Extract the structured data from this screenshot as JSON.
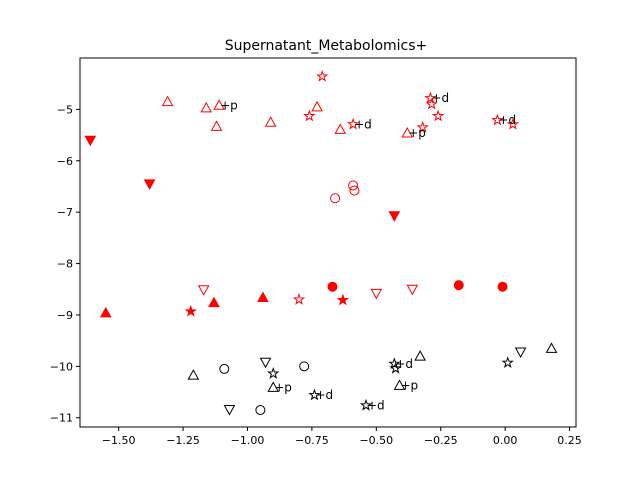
{
  "chart_data": {
    "type": "scatter",
    "title": "Supernatant_Metabolomics+",
    "xlabel": "",
    "ylabel": "",
    "xlim": [
      -1.65,
      0.275
    ],
    "ylim": [
      -11.18,
      -4.0
    ],
    "xticks": [
      -1.5,
      -1.25,
      -1.0,
      -0.75,
      -0.5,
      -0.25,
      0.0,
      0.25
    ],
    "xtick_labels": [
      "−1.50",
      "−1.25",
      "−1.00",
      "−0.75",
      "−0.50",
      "−0.25",
      "0.00",
      "0.25"
    ],
    "yticks": [
      -11,
      -10,
      -9,
      -8,
      -7,
      -6,
      -5
    ],
    "ytick_labels": [
      "−11",
      "−10",
      "−9",
      "−8",
      "−7",
      "−6",
      "−5"
    ],
    "grid": false,
    "colors": {
      "red": "#ff0000",
      "black": "#000000"
    },
    "points": [
      {
        "x": -1.31,
        "y": -4.85,
        "marker": "triangle-up",
        "filled": false,
        "color": "red"
      },
      {
        "x": -1.16,
        "y": -4.97,
        "marker": "triangle-up",
        "filled": false,
        "color": "red"
      },
      {
        "x": -1.11,
        "y": -4.92,
        "marker": "triangle-up",
        "filled": false,
        "color": "red",
        "label": "+p"
      },
      {
        "x": -1.12,
        "y": -5.33,
        "marker": "triangle-up",
        "filled": false,
        "color": "red"
      },
      {
        "x": -0.91,
        "y": -5.25,
        "marker": "triangle-up",
        "filled": false,
        "color": "red"
      },
      {
        "x": -0.73,
        "y": -4.95,
        "marker": "triangle-up",
        "filled": false,
        "color": "red"
      },
      {
        "x": -0.64,
        "y": -5.39,
        "marker": "triangle-up",
        "filled": false,
        "color": "red"
      },
      {
        "x": -0.38,
        "y": -5.46,
        "marker": "triangle-up",
        "filled": false,
        "color": "red",
        "label": "+p"
      },
      {
        "x": -0.71,
        "y": -4.36,
        "marker": "star",
        "filled": false,
        "color": "red"
      },
      {
        "x": -0.76,
        "y": -5.13,
        "marker": "star",
        "filled": false,
        "color": "red"
      },
      {
        "x": -0.59,
        "y": -5.29,
        "marker": "star",
        "filled": false,
        "color": "red",
        "label": "+d"
      },
      {
        "x": -0.29,
        "y": -4.78,
        "marker": "star",
        "filled": false,
        "color": "red",
        "label": "+d"
      },
      {
        "x": -0.285,
        "y": -4.9,
        "marker": "star",
        "filled": false,
        "color": "red"
      },
      {
        "x": -0.26,
        "y": -5.13,
        "marker": "star",
        "filled": false,
        "color": "red"
      },
      {
        "x": -0.32,
        "y": -5.35,
        "marker": "star",
        "filled": false,
        "color": "red"
      },
      {
        "x": -0.03,
        "y": -5.21,
        "marker": "star",
        "filled": false,
        "color": "red",
        "label": "+d"
      },
      {
        "x": 0.03,
        "y": -5.29,
        "marker": "star",
        "filled": false,
        "color": "red"
      },
      {
        "x": -0.59,
        "y": -6.48,
        "marker": "circle",
        "filled": false,
        "color": "red"
      },
      {
        "x": -0.585,
        "y": -6.58,
        "marker": "circle",
        "filled": false,
        "color": "red"
      },
      {
        "x": -0.66,
        "y": -6.73,
        "marker": "circle",
        "filled": false,
        "color": "red"
      },
      {
        "x": -1.61,
        "y": -5.6,
        "marker": "triangle-down",
        "filled": true,
        "color": "red"
      },
      {
        "x": -1.38,
        "y": -6.45,
        "marker": "triangle-down",
        "filled": true,
        "color": "red"
      },
      {
        "x": -0.43,
        "y": -7.07,
        "marker": "triangle-down",
        "filled": true,
        "color": "red"
      },
      {
        "x": -1.17,
        "y": -8.51,
        "marker": "triangle-down",
        "filled": false,
        "color": "red"
      },
      {
        "x": -0.5,
        "y": -8.58,
        "marker": "triangle-down",
        "filled": false,
        "color": "red"
      },
      {
        "x": -0.36,
        "y": -8.5,
        "marker": "triangle-down",
        "filled": false,
        "color": "red"
      },
      {
        "x": -1.55,
        "y": -8.96,
        "marker": "triangle-up",
        "filled": true,
        "color": "red"
      },
      {
        "x": -1.13,
        "y": -8.76,
        "marker": "triangle-up",
        "filled": true,
        "color": "red"
      },
      {
        "x": -0.94,
        "y": -8.66,
        "marker": "triangle-up",
        "filled": true,
        "color": "red"
      },
      {
        "x": -1.22,
        "y": -8.93,
        "marker": "star",
        "filled": true,
        "color": "red"
      },
      {
        "x": -0.8,
        "y": -8.7,
        "marker": "star",
        "filled": false,
        "color": "red"
      },
      {
        "x": -0.63,
        "y": -8.71,
        "marker": "star",
        "filled": true,
        "color": "red"
      },
      {
        "x": -0.67,
        "y": -8.45,
        "marker": "circle",
        "filled": true,
        "color": "red"
      },
      {
        "x": -0.18,
        "y": -8.42,
        "marker": "circle",
        "filled": true,
        "color": "red"
      },
      {
        "x": -0.01,
        "y": -8.45,
        "marker": "circle",
        "filled": true,
        "color": "red"
      },
      {
        "x": -1.21,
        "y": -10.17,
        "marker": "triangle-up",
        "filled": false,
        "color": "black"
      },
      {
        "x": -0.9,
        "y": -10.41,
        "marker": "triangle-up",
        "filled": false,
        "color": "black",
        "label": "+p"
      },
      {
        "x": -0.41,
        "y": -10.37,
        "marker": "triangle-up",
        "filled": false,
        "color": "black",
        "label": "+p"
      },
      {
        "x": -0.33,
        "y": -9.8,
        "marker": "triangle-up",
        "filled": false,
        "color": "black"
      },
      {
        "x": 0.18,
        "y": -9.65,
        "marker": "triangle-up",
        "filled": false,
        "color": "black"
      },
      {
        "x": -1.09,
        "y": -10.05,
        "marker": "circle",
        "filled": false,
        "color": "black"
      },
      {
        "x": -0.95,
        "y": -10.85,
        "marker": "circle",
        "filled": false,
        "color": "black"
      },
      {
        "x": -0.78,
        "y": -10.0,
        "marker": "circle",
        "filled": false,
        "color": "black"
      },
      {
        "x": -0.93,
        "y": -9.92,
        "marker": "triangle-down",
        "filled": false,
        "color": "black"
      },
      {
        "x": -1.07,
        "y": -10.84,
        "marker": "triangle-down",
        "filled": false,
        "color": "black"
      },
      {
        "x": 0.06,
        "y": -9.72,
        "marker": "triangle-down",
        "filled": false,
        "color": "black"
      },
      {
        "x": -0.9,
        "y": -10.14,
        "marker": "star",
        "filled": false,
        "color": "black"
      },
      {
        "x": -0.74,
        "y": -10.56,
        "marker": "star",
        "filled": false,
        "color": "black",
        "label": "+d"
      },
      {
        "x": -0.54,
        "y": -10.76,
        "marker": "star",
        "filled": false,
        "color": "black",
        "label": "+d"
      },
      {
        "x": -0.43,
        "y": -9.95,
        "marker": "star",
        "filled": false,
        "color": "black",
        "label": "+d"
      },
      {
        "x": -0.425,
        "y": -10.04,
        "marker": "star",
        "filled": false,
        "color": "black"
      },
      {
        "x": 0.01,
        "y": -9.93,
        "marker": "star",
        "filled": false,
        "color": "black"
      }
    ]
  }
}
